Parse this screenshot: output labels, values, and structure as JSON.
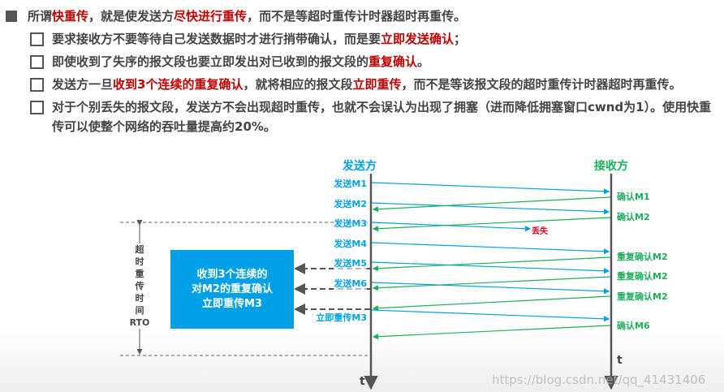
{
  "bullets": {
    "main": [
      "所谓",
      "快重传",
      "，就是使发送方",
      "尽快进行重传",
      "，而不是等超时重传计时器超时再重传。"
    ],
    "sub1": [
      "要求接收方不要等待自己发送数据时才进行捎带确认，而是要",
      "立即发送确认",
      "；"
    ],
    "sub2": [
      "即使收到了失序的报文段也要立即发出对已收到的报文段的",
      "重复确认",
      "。"
    ],
    "sub3": [
      "发送方一旦",
      "收到3个连续的重复确认",
      "，就将相应的报文段",
      "立即重传",
      "，而不是等该报文段的超时重传计时器超时再重传。"
    ],
    "sub4": "对于个别丢失的报文段，发送方不会出现超时重传，也就不会误认为出现了拥塞（进而降低拥塞窗口cwnd为1）。使用快重传可以使整个网络的吞吐量提高约20%。"
  },
  "diagram": {
    "sender": "发送方",
    "receiver": "接收方",
    "time": "t",
    "send_labels": [
      "发送M1",
      "发送M2",
      "发送M3",
      "发送M4",
      "发送M5",
      "发送M6",
      "立即重传M3"
    ],
    "ack_labels": [
      "确认M1",
      "确认M2",
      "重复确认M2",
      "重复确认M2",
      "重复确认M2",
      "确认M6"
    ],
    "lost": "丢失",
    "rto": [
      "超",
      "时",
      "重",
      "传",
      "时",
      "间",
      "RTO"
    ],
    "box": [
      "收到3个连续的",
      "对M2的重复确认",
      "立即重传M3"
    ],
    "colors": {
      "send": "#00a0e9",
      "ack": "#1bb15a",
      "lost": "#e60012",
      "box": "#00a0e9"
    }
  },
  "watermark": "https://blog.csdn.net/qq_41431406"
}
